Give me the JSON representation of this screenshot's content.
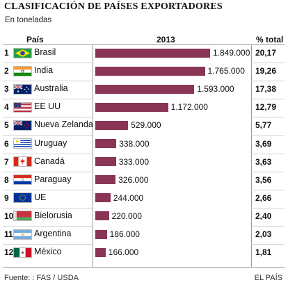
{
  "title": "CLASIFICACIÓN DE PAÍSES EXPORTADORES",
  "subtitle": "En toneladas",
  "headers": {
    "country": "País",
    "year": "2013",
    "pct": "% total"
  },
  "source": "Fuente: : FAS / USDA",
  "brand": "EL PAÍS",
  "colors": {
    "bar": "#8b3556"
  },
  "chart_data": {
    "type": "bar",
    "title": "CLASIFICACIÓN DE PAÍSES EXPORTADORES",
    "subtitle": "En toneladas",
    "categories": [
      "Brasil",
      "India",
      "Australia",
      "EE UU",
      "Nueva Zelanda",
      "Uruguay",
      "Canadá",
      "Paraguay",
      "UE",
      "Bielorusia",
      "Argentina",
      "México"
    ],
    "series": [
      {
        "name": "2013",
        "values": [
          1849000,
          1765000,
          1593000,
          1172000,
          529000,
          338000,
          333000,
          326000,
          244000,
          220000,
          186000,
          166000
        ]
      }
    ],
    "rows": [
      {
        "rank": "1",
        "country": "Brasil",
        "flag": "brazil-flag",
        "value": 1849000,
        "label": "1.849.000",
        "pct": "20,17"
      },
      {
        "rank": "2",
        "country": "India",
        "flag": "india-flag",
        "value": 1765000,
        "label": "1.765.000",
        "pct": "19,26"
      },
      {
        "rank": "3",
        "country": "Australia",
        "flag": "australia-flag",
        "value": 1593000,
        "label": "1.593.000",
        "pct": "17,38"
      },
      {
        "rank": "4",
        "country": "EE UU",
        "flag": "usa-flag",
        "value": 1172000,
        "label": "1.172.000",
        "pct": "12,79"
      },
      {
        "rank": "5",
        "country": "Nueva Zelanda",
        "flag": "new-zealand-flag",
        "value": 529000,
        "label": "529.000",
        "pct": "5,77"
      },
      {
        "rank": "6",
        "country": "Uruguay",
        "flag": "uruguay-flag",
        "value": 338000,
        "label": "338.000",
        "pct": "3,69"
      },
      {
        "rank": "7",
        "country": "Canadá",
        "flag": "canada-flag",
        "value": 333000,
        "label": "333.000",
        "pct": "3,63"
      },
      {
        "rank": "8",
        "country": "Paraguay",
        "flag": "paraguay-flag",
        "value": 326000,
        "label": "326.000",
        "pct": "3,56"
      },
      {
        "rank": "9",
        "country": "UE",
        "flag": "eu-flag",
        "value": 244000,
        "label": "244.000",
        "pct": "2,66"
      },
      {
        "rank": "10",
        "country": "Bielorusia",
        "flag": "belarus-flag",
        "value": 220000,
        "label": "220.000",
        "pct": "2,40"
      },
      {
        "rank": "11",
        "country": "Argentina",
        "flag": "argentina-flag",
        "value": 186000,
        "label": "186.000",
        "pct": "2,03"
      },
      {
        "rank": "12",
        "country": "México",
        "flag": "mexico-flag",
        "value": 166000,
        "label": "166.000",
        "pct": "1,81"
      }
    ]
  }
}
